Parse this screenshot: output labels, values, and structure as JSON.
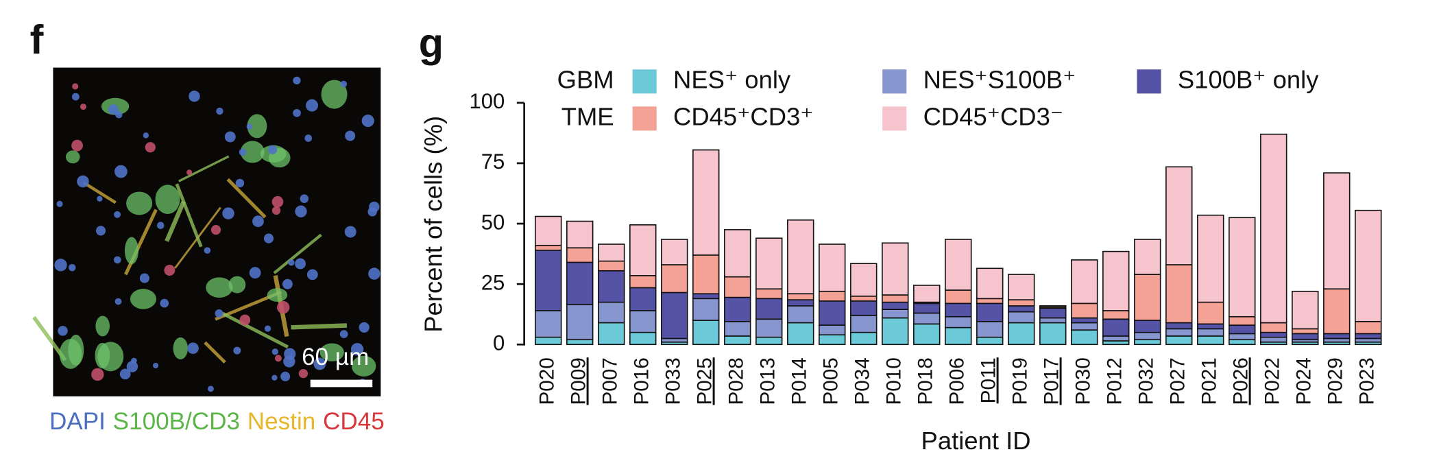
{
  "panel_labels": [
    "f",
    "g"
  ],
  "image_panel": {
    "scale_bar": "60 µm",
    "caption": [
      {
        "text": "DAPI",
        "color": "#4a6fc0"
      },
      {
        "text": "S100B/CD3",
        "color": "#5cb548"
      },
      {
        "text": "Nestin",
        "color": "#e8b62a"
      },
      {
        "text": "CD45",
        "color": "#d8383c"
      }
    ]
  },
  "chart_data": {
    "type": "stacked_bar",
    "xlabel": "Patient ID",
    "ylabel": "Percent of cells (%)",
    "categories": [
      "P020",
      "P009",
      "P007",
      "P016",
      "P033",
      "P025",
      "P028",
      "P013",
      "P014",
      "P005",
      "P034",
      "P010",
      "P018",
      "P006",
      "P011",
      "P019",
      "P017",
      "P030",
      "P012",
      "P032",
      "P027",
      "P021",
      "P026",
      "P022",
      "P024",
      "P029",
      "P023"
    ],
    "underlined": [
      false,
      true,
      false,
      false,
      false,
      true,
      false,
      false,
      false,
      false,
      false,
      false,
      false,
      false,
      true,
      false,
      true,
      false,
      false,
      false,
      false,
      false,
      true,
      false,
      false,
      false,
      false
    ],
    "ylim": [
      0,
      100
    ],
    "yticks": [
      0,
      25,
      50,
      75,
      100
    ],
    "series": [
      {
        "name": "NES⁺ only",
        "group": "GBM",
        "color": "#6ccad8",
        "values": [
          3,
          2,
          9,
          5,
          1,
          10,
          3.5,
          3,
          9,
          4,
          5,
          11,
          8.5,
          7,
          3,
          9,
          9,
          6,
          1.5,
          2,
          3.5,
          3.5,
          2,
          1,
          1,
          1,
          1
        ]
      },
      {
        "name": "NES⁺S100B⁺",
        "group": "GBM",
        "color": "#8796cf",
        "values": [
          11,
          14.5,
          8.5,
          9,
          1.5,
          9,
          6,
          7.5,
          7,
          4,
          7,
          3.5,
          4.5,
          4.5,
          6.5,
          4.5,
          2,
          3,
          2,
          3,
          3,
          3,
          2.5,
          2,
          1,
          1.5,
          1.5
        ]
      },
      {
        "name": "S100B⁺ only",
        "group": "GBM",
        "color": "#5553a6",
        "values": [
          25,
          17.5,
          13,
          9.5,
          19,
          2,
          10,
          8.5,
          2.5,
          10,
          6,
          3,
          4,
          5.5,
          7.5,
          2.5,
          4,
          2,
          7,
          5,
          2.5,
          2,
          3.5,
          2,
          2.5,
          2,
          2
        ]
      },
      {
        "name": "CD45⁺CD3⁺",
        "group": "TME",
        "color": "#f4a196",
        "values": [
          2,
          6,
          4,
          5,
          11.5,
          16,
          8.5,
          4,
          2.5,
          4,
          2,
          3,
          0.5,
          5.5,
          2,
          2.5,
          0.5,
          6,
          3.5,
          19,
          24,
          9,
          3.5,
          4,
          2,
          18.5,
          5
        ]
      },
      {
        "name": "CD45⁺CD3⁻",
        "group": "TME",
        "color": "#f6c4cc",
        "values": [
          12,
          11,
          7,
          21,
          10.5,
          43.5,
          19.5,
          21,
          30.5,
          19.5,
          13.5,
          21.5,
          7,
          21,
          12.5,
          10.5,
          0.5,
          18,
          24.5,
          14.5,
          40.5,
          36,
          41,
          78,
          15.5,
          48,
          46
        ]
      }
    ]
  }
}
